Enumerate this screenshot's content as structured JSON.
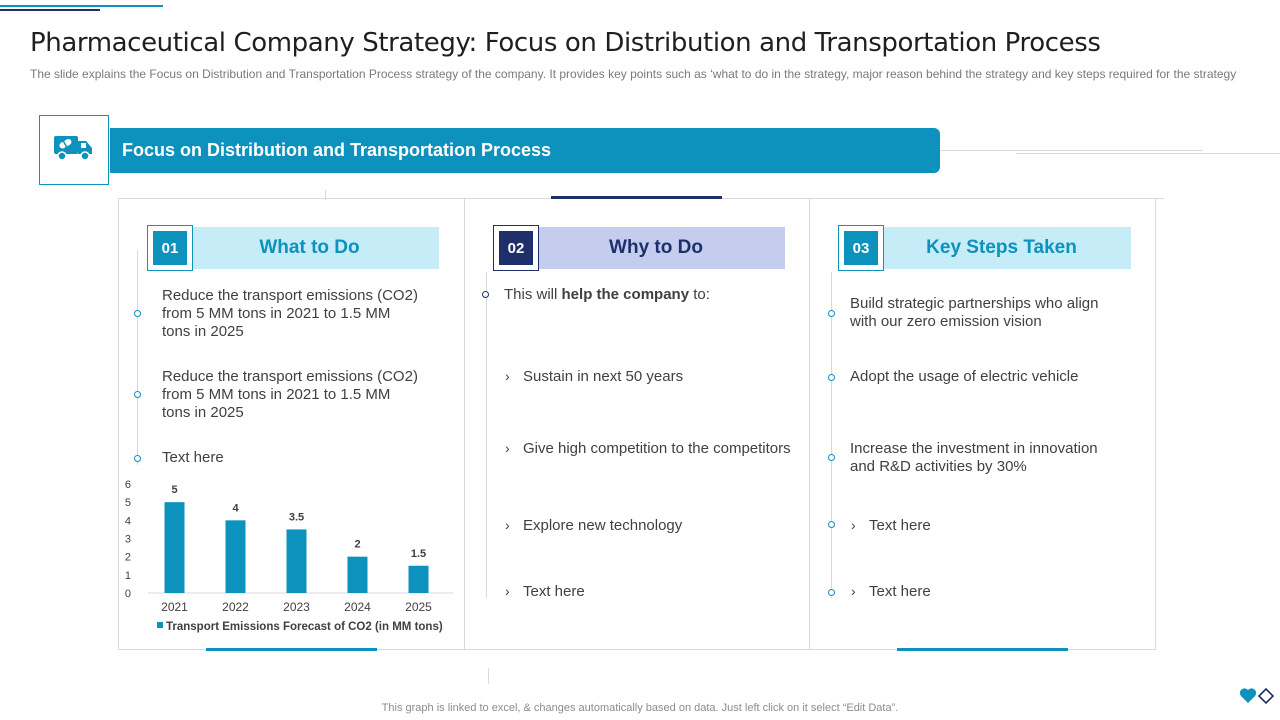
{
  "header": {
    "title": "Pharmaceutical Company Strategy: Focus on Distribution and Transportation Process",
    "subtitle": "The slide explains the Focus on Distribution and Transportation  Process strategy of the company. It provides  key points such as ‘what to do in the strategy, major reason behind the strategy and key steps required  for the strategy"
  },
  "banner": {
    "icon": "delivery-truck-icon",
    "label": "Focus on Distribution and Transportation Process"
  },
  "columns": [
    {
      "number": "01",
      "heading": "What to Do",
      "items": [
        "Reduce the transport emissions (CO2) from 5 MM tons in 2021 to 1.5 MM tons in 2025",
        "Reduce the transport emissions (CO2) from 5 MM tons in 2021 to 1.5 MM tons in 2025",
        "Text here"
      ]
    },
    {
      "number": "02",
      "heading": "Why to Do",
      "intro_prefix": "This will ",
      "intro_bold": "help the company",
      "intro_suffix": " to:",
      "items": [
        "Sustain in next 50 years",
        "Give high competition to the competitors",
        "Explore new technology",
        "Text here"
      ]
    },
    {
      "number": "03",
      "heading": "Key Steps Taken",
      "items": [
        "Build strategic partnerships who align with our zero emission vision",
        "Adopt the usage of electric vehicle",
        "Increase the investment in innovation and R&D activities by 30%",
        "Text here",
        "Text here"
      ]
    }
  ],
  "chart_data": {
    "type": "bar",
    "categories": [
      "2021",
      "2022",
      "2023",
      "2024",
      "2025"
    ],
    "series": [
      {
        "name": "Transport Emissions Forecast of CO2 (in MM tons)",
        "values": [
          5,
          4,
          3.5,
          2,
          1.5
        ]
      }
    ],
    "data_labels": [
      "5",
      "4",
      "3.5",
      "2",
      "1.5"
    ],
    "ylim": [
      0,
      6
    ],
    "yticks": [
      "0",
      "1",
      "2",
      "3",
      "4",
      "5",
      "6"
    ],
    "legend": "bottom",
    "grid": false,
    "color": "#0d91bd"
  },
  "footer": {
    "note": "This graph is linked to excel, & changes automatically based on data. Just left click on it select “Edit Data”."
  },
  "colors": {
    "accent": "#0d91bd",
    "navy": "#1f2f6b",
    "light_cyan": "#c6ecf8",
    "light_navy": "#c5cdef"
  }
}
